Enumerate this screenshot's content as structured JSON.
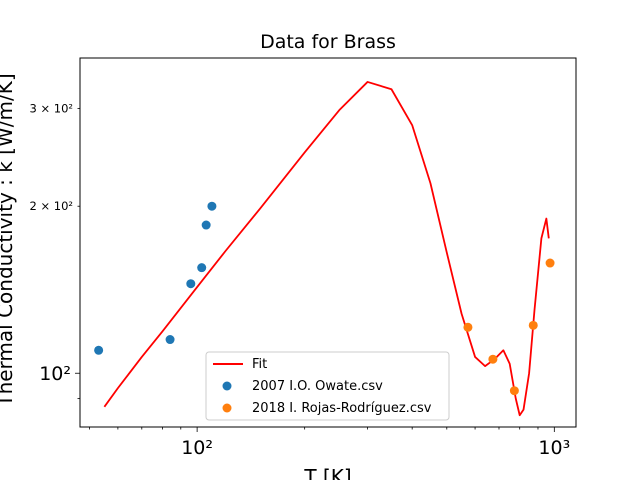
{
  "chart_data": {
    "type": "scatter",
    "title": "Data for Brass",
    "xlabel": "T [K]",
    "ylabel": "Thermal Conductivity : k [W/m/K]",
    "xscale": "log",
    "yscale": "log",
    "xlim": [
      47,
      1150
    ],
    "ylim": [
      80,
      370
    ],
    "grid": false,
    "legend_position": "lower center",
    "x_major_ticks": [
      {
        "value": 100,
        "label": "10²"
      },
      {
        "value": 1000,
        "label": "10³"
      }
    ],
    "y_major_ticks": [
      {
        "value": 100,
        "label": "10²"
      }
    ],
    "y_minor_labels": [
      {
        "value": 200,
        "label": "2 × 10²"
      },
      {
        "value": 300,
        "label": "3 × 10²"
      }
    ],
    "series": [
      {
        "name": "Fit",
        "kind": "line",
        "color": "#ff0000",
        "x": [
          55,
          60,
          70,
          80,
          100,
          120,
          150,
          200,
          250,
          300,
          350,
          400,
          450,
          500,
          550,
          600,
          640,
          680,
          720,
          750,
          780,
          800,
          820,
          850,
          880,
          920,
          950,
          965
        ],
        "y": [
          87,
          94,
          107,
          119,
          143,
          166,
          198,
          250,
          298,
          335,
          325,
          280,
          220,
          165,
          128,
          107,
          103,
          106,
          110,
          104,
          90,
          84,
          86,
          100,
          130,
          175,
          190,
          175
        ]
      },
      {
        "name": "2007 I.O. Owate.csv",
        "kind": "scatter",
        "color": "#1f77b4",
        "x": [
          53,
          84,
          96,
          103,
          106,
          110
        ],
        "y": [
          110,
          115,
          145,
          155,
          185,
          200
        ]
      },
      {
        "name": "2018 I. Rojas-Rodríguez.csv",
        "kind": "scatter",
        "color": "#ff7f0e",
        "x": [
          573,
          673,
          773,
          873,
          973
        ],
        "y": [
          121,
          106,
          93,
          122,
          158
        ]
      }
    ]
  }
}
